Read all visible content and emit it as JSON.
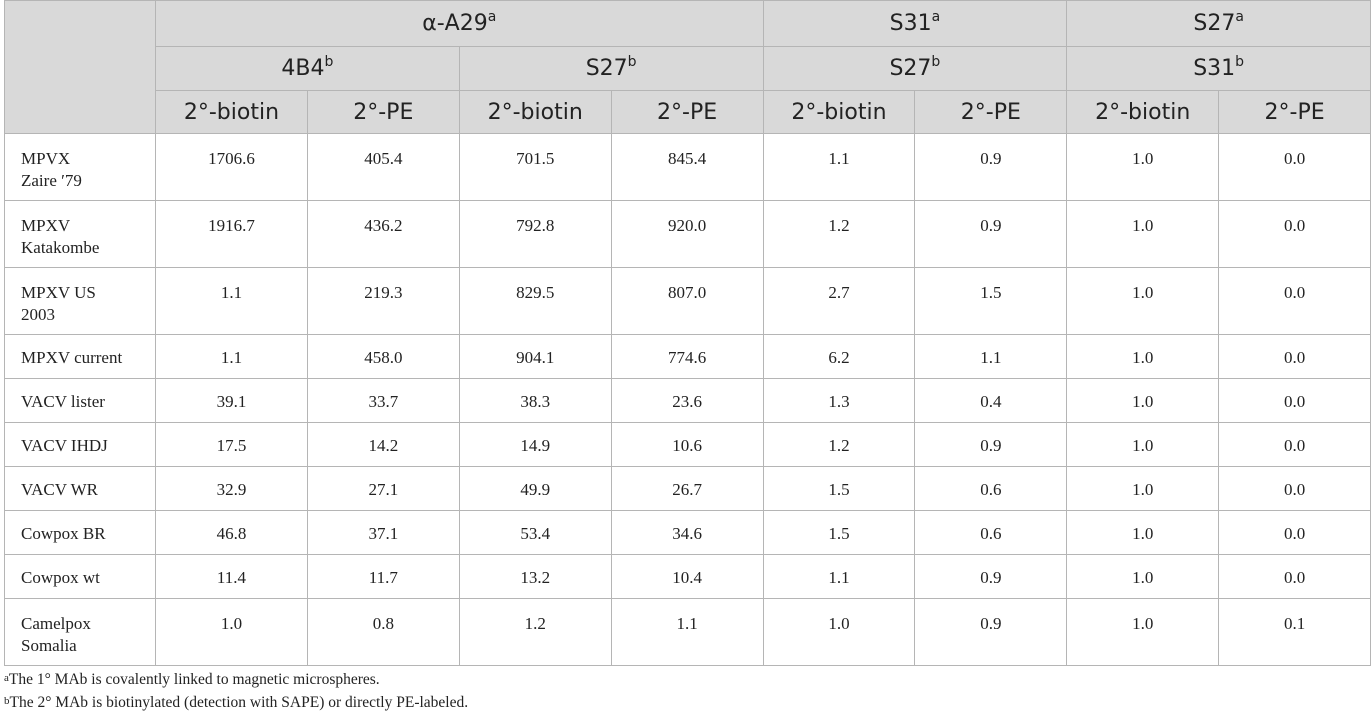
{
  "header": {
    "group1": {
      "label": "α-A29",
      "sup": "a"
    },
    "group2": {
      "label": "S31",
      "sup": "a"
    },
    "group3": {
      "label": "S27",
      "sup": "a"
    },
    "sub1": {
      "label": "4B4",
      "sup": "b"
    },
    "sub2": {
      "label": "S27",
      "sup": "b"
    },
    "sub3": {
      "label": "S27",
      "sup": "b"
    },
    "sub4": {
      "label": "S31",
      "sup": "b"
    },
    "col_biotin": "2°-biotin",
    "col_pe": "2°-PE"
  },
  "rows": [
    {
      "label1": "MPVX",
      "label2": "Zaire ′79",
      "values": [
        "1706.6",
        "405.4",
        "701.5",
        "845.4",
        "1.1",
        "0.9",
        "1.0",
        "0.0"
      ]
    },
    {
      "label1": "MPXV",
      "label2": "Katakombe",
      "values": [
        "1916.7",
        "436.2",
        "792.8",
        "920.0",
        "1.2",
        "0.9",
        "1.0",
        "0.0"
      ]
    },
    {
      "label1": "MPXV US",
      "label2": "2003",
      "values": [
        "1.1",
        "219.3",
        "829.5",
        "807.0",
        "2.7",
        "1.5",
        "1.0",
        "0.0"
      ]
    },
    {
      "label1": "MPXV current",
      "label2": "",
      "values": [
        "1.1",
        "458.0",
        "904.1",
        "774.6",
        "6.2",
        "1.1",
        "1.0",
        "0.0"
      ]
    },
    {
      "label1": "VACV lister",
      "label2": "",
      "values": [
        "39.1",
        "33.7",
        "38.3",
        "23.6",
        "1.3",
        "0.4",
        "1.0",
        "0.0"
      ]
    },
    {
      "label1": "VACV IHDJ",
      "label2": "",
      "values": [
        "17.5",
        "14.2",
        "14.9",
        "10.6",
        "1.2",
        "0.9",
        "1.0",
        "0.0"
      ]
    },
    {
      "label1": "VACV WR",
      "label2": "",
      "values": [
        "32.9",
        "27.1",
        "49.9",
        "26.7",
        "1.5",
        "0.6",
        "1.0",
        "0.0"
      ]
    },
    {
      "label1": "Cowpox BR",
      "label2": "",
      "values": [
        "46.8",
        "37.1",
        "53.4",
        "34.6",
        "1.5",
        "0.6",
        "1.0",
        "0.0"
      ]
    },
    {
      "label1": "Cowpox wt",
      "label2": "",
      "values": [
        "11.4",
        "11.7",
        "13.2",
        "10.4",
        "1.1",
        "0.9",
        "1.0",
        "0.0"
      ]
    },
    {
      "label1": "Camelpox",
      "label2": "Somalia",
      "values": [
        "1.0",
        "0.8",
        "1.2",
        "1.1",
        "1.0",
        "0.9",
        "1.0",
        "0.1"
      ]
    }
  ],
  "footnotes": [
    {
      "mark": "a",
      "text": "The 1° MAb is covalently linked to magnetic microspheres."
    },
    {
      "mark": "b",
      "text": "The 2° MAb is biotinylated (detection with SAPE) or directly PE-labeled."
    }
  ]
}
